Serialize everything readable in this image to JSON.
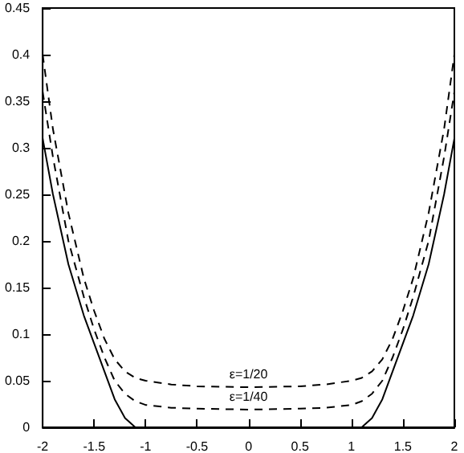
{
  "chart_data": {
    "type": "line",
    "xlim": [
      -2,
      2
    ],
    "xticks": [
      -2,
      -1.5,
      -1,
      -0.5,
      0,
      0.5,
      1,
      1.5,
      2
    ],
    "ylim": [
      0,
      0.45
    ],
    "yticks": [
      0,
      0.05,
      0.1,
      0.15,
      0.2,
      0.25,
      0.3,
      0.35,
      0.4,
      0.45
    ],
    "grid": false,
    "marker": "none",
    "x": [
      -2,
      -1.9,
      -1.75,
      -1.6,
      -1.5,
      -1.4,
      -1.3,
      -1.2,
      -1.1,
      -1,
      -0.75,
      -0.5,
      0,
      0.5,
      0.75,
      1,
      1.1,
      1.2,
      1.3,
      1.4,
      1.5,
      1.6,
      1.75,
      1.9,
      2
    ],
    "series": [
      {
        "color": "#000000",
        "line_style": "solid",
        "values": [
          0.31,
          0.25,
          0.175,
          0.12,
          0.09,
          0.06,
          0.03,
          0.01,
          0,
          0,
          0,
          0,
          0,
          0,
          0,
          0,
          0,
          0.01,
          0.03,
          0.06,
          0.09,
          0.12,
          0.175,
          0.25,
          0.31
        ]
      },
      {
        "color": "#000000",
        "line_style": "dashed",
        "values": [
          0.36,
          0.29,
          0.2,
          0.14,
          0.105,
          0.075,
          0.05,
          0.036,
          0.028,
          0.024,
          0.021,
          0.02,
          0.019,
          0.02,
          0.021,
          0.024,
          0.028,
          0.036,
          0.05,
          0.075,
          0.105,
          0.14,
          0.2,
          0.29,
          0.36
        ]
      },
      {
        "color": "#000000",
        "line_style": "dashed",
        "values": [
          0.4,
          0.32,
          0.23,
          0.16,
          0.125,
          0.095,
          0.073,
          0.06,
          0.053,
          0.05,
          0.046,
          0.044,
          0.043,
          0.044,
          0.046,
          0.05,
          0.053,
          0.06,
          0.073,
          0.095,
          0.125,
          0.16,
          0.23,
          0.32,
          0.4
        ]
      }
    ],
    "annotations": [
      "ε=1/20",
      "ε=1/40"
    ]
  }
}
